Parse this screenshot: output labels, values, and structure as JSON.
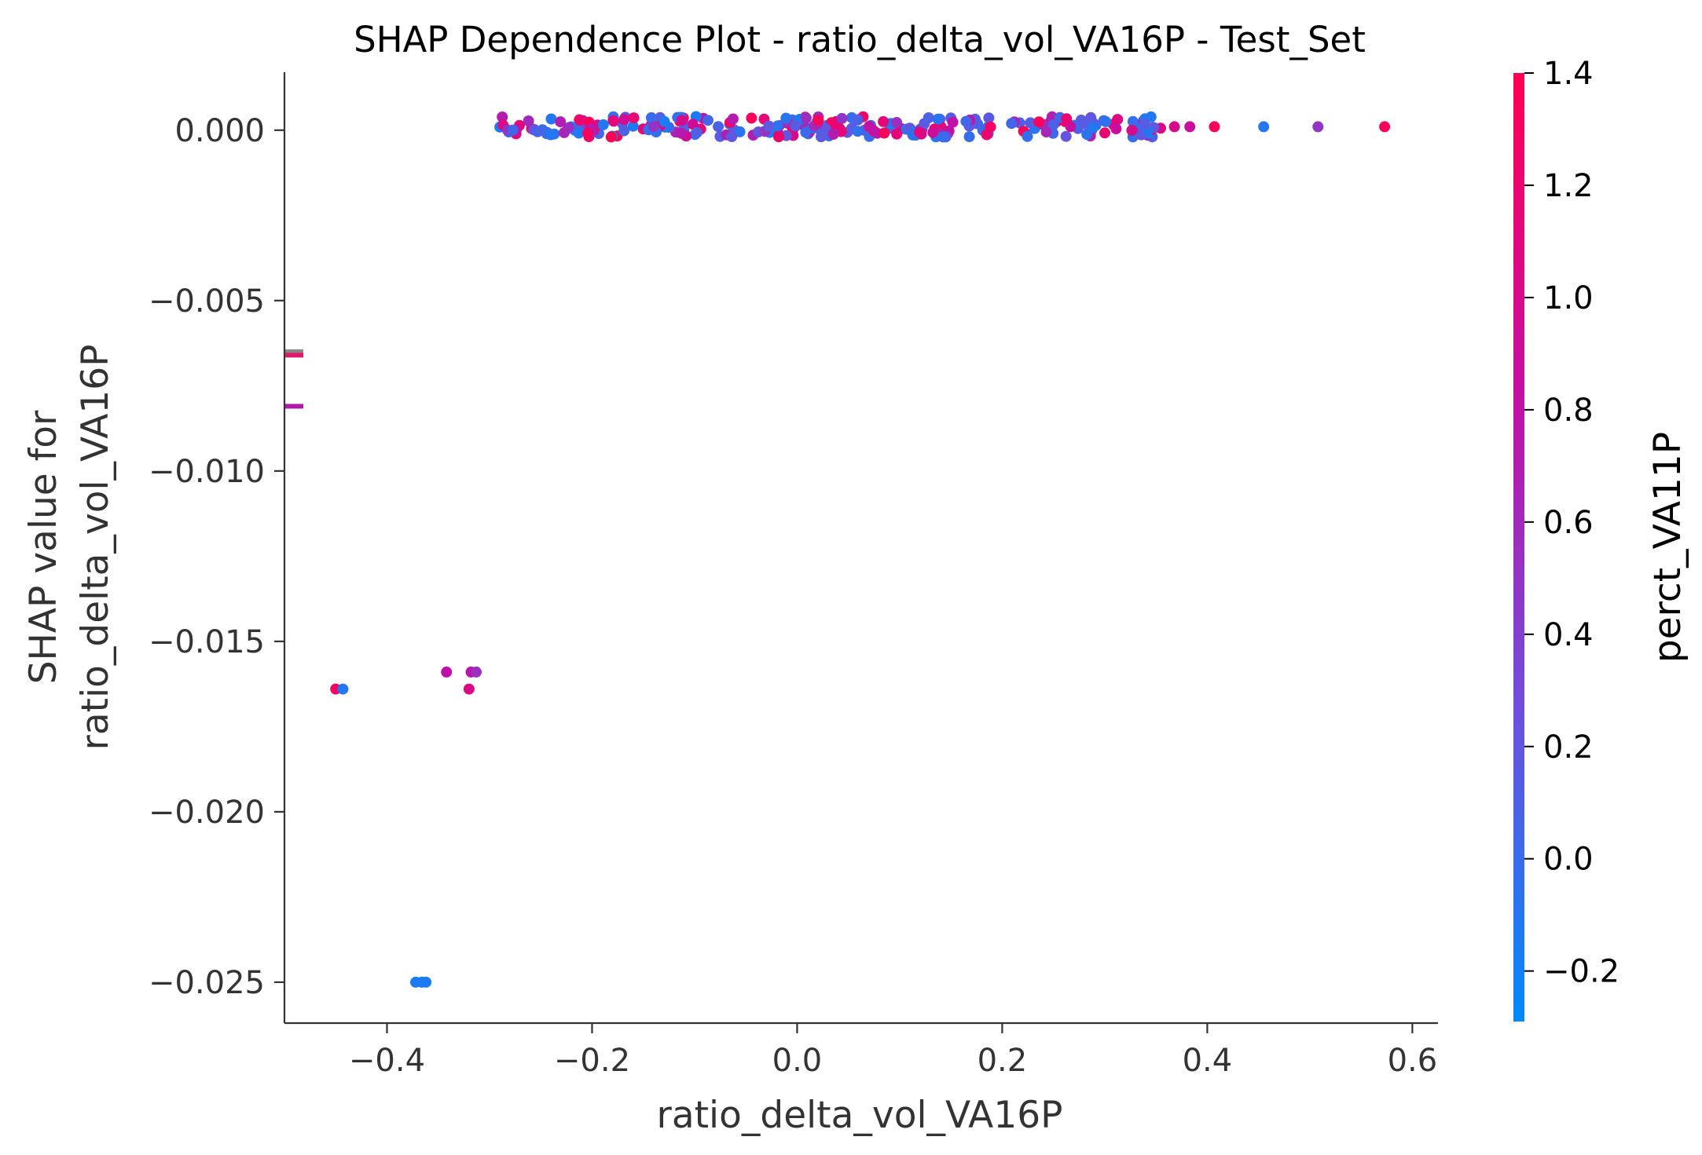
{
  "chart_data": {
    "type": "scatter",
    "title": "SHAP Dependence Plot - ratio_delta_vol_VA16P - Test_Set",
    "xlabel": "ratio_delta_vol_VA16P",
    "ylabel": [
      "SHAP value for",
      "ratio_delta_vol_VA16P"
    ],
    "xlim": [
      -0.5,
      0.625
    ],
    "ylim": [
      -0.0262,
      0.0017
    ],
    "xticks": [
      -0.4,
      -0.2,
      0.0,
      0.2,
      0.4,
      0.6
    ],
    "xtick_labels": [
      "−0.4",
      "−0.2",
      "0.0",
      "0.2",
      "0.4",
      "0.6"
    ],
    "yticks": [
      0.0,
      -0.005,
      -0.01,
      -0.015,
      -0.02,
      -0.025
    ],
    "ytick_labels": [
      "0.000",
      "−0.005",
      "−0.010",
      "−0.015",
      "−0.020",
      "−0.025"
    ],
    "grid": false,
    "colorbar": {
      "label": "perct_VA11P",
      "range": [
        -0.29,
        1.4
      ],
      "ticks": [
        -0.2,
        0.0,
        0.2,
        0.4,
        0.6,
        0.8,
        1.0,
        1.2,
        1.4
      ],
      "tick_labels": [
        "−0.2",
        "0.0",
        "0.2",
        "0.4",
        "0.6",
        "0.8",
        "1.0",
        "1.2",
        "1.4"
      ],
      "colors": [
        "#008afb",
        "#6f4fdc",
        "#c40fa4",
        "#ff0052"
      ]
    },
    "dense_band": {
      "x_range": [
        -0.29,
        0.36
      ],
      "y": 0.0001,
      "count": 260
    },
    "points": [
      {
        "x": 0.368,
        "y": 0.0001,
        "c": 1.0
      },
      {
        "x": 0.383,
        "y": 0.0001,
        "c": 0.9
      },
      {
        "x": 0.407,
        "y": 0.0001,
        "c": 1.35
      },
      {
        "x": 0.455,
        "y": 0.0001,
        "c": -0.1
      },
      {
        "x": 0.508,
        "y": 0.0001,
        "c": 0.5
      },
      {
        "x": 0.573,
        "y": 0.0001,
        "c": 1.35
      },
      {
        "x": -0.45,
        "y": -0.0164,
        "c": 1.3
      },
      {
        "x": -0.443,
        "y": -0.0164,
        "c": -0.1
      },
      {
        "x": -0.342,
        "y": -0.0159,
        "c": 0.8
      },
      {
        "x": -0.318,
        "y": -0.0159,
        "c": 0.8
      },
      {
        "x": -0.313,
        "y": -0.0159,
        "c": 0.55
      },
      {
        "x": -0.32,
        "y": -0.0164,
        "c": 1.05
      },
      {
        "x": -0.372,
        "y": -0.025,
        "c": -0.15
      },
      {
        "x": -0.366,
        "y": -0.025,
        "c": -0.15
      },
      {
        "x": -0.362,
        "y": -0.025,
        "c": -0.15
      }
    ],
    "nan_markers": [
      {
        "y": -0.0065,
        "color": "#888888"
      },
      {
        "y": -0.0066,
        "color": "#e0186e"
      },
      {
        "y": -0.0081,
        "color": "#b01aa6"
      }
    ]
  }
}
